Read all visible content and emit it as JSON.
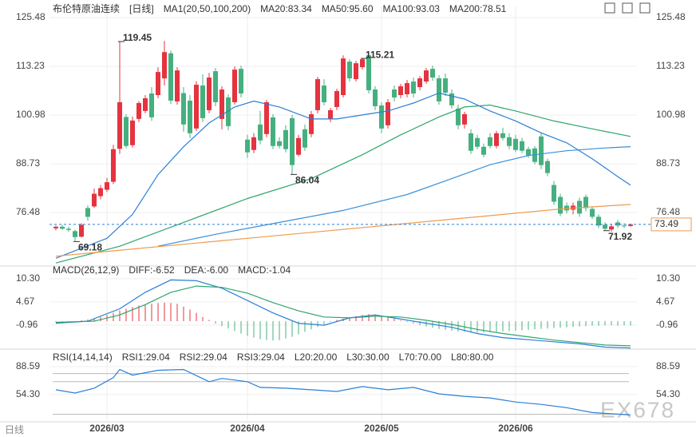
{
  "chart_data": [
    {
      "type": "candlestick",
      "title": "布伦特原油连续",
      "period": "[日线]",
      "indicator": "MA1(20,50,100,200)",
      "up_color": "#e5333f",
      "down_color": "#45b07f",
      "open": [
        72.5,
        72.9,
        72.4,
        71.8,
        70.4,
        77.6,
        78,
        80.6,
        82.2,
        84.2,
        92.5,
        100.5,
        93.4,
        100,
        102,
        106.4,
        106,
        110.2,
        116.5,
        104.4,
        106.5,
        104.6,
        97.6,
        108.4,
        102.2,
        112,
        100,
        105.4,
        104.2,
        112.6,
        94.8,
        92.2,
        98.6,
        96.2,
        100.4,
        94.4,
        97.2,
        100.2,
        91,
        97.4,
        96.2,
        102.2,
        108.4,
        100,
        103,
        106,
        114.4,
        110,
        113,
        116,
        107.4,
        103.4,
        98.4,
        107.4,
        106,
        106.2,
        109.4,
        108,
        109.4,
        112.6,
        110.2,
        110.2,
        106.4,
        102.6,
        98.6,
        96.4,
        95.2,
        93,
        95.4,
        93.2,
        96.4,
        95.4,
        95,
        94.4,
        92.4,
        92.6,
        95.6,
        89.4,
        83.4,
        80.4,
        78.2,
        77.2,
        79.4,
        80.4,
        77.4,
        75.4,
        73.4,
        72.2,
        74,
        73.2,
        73.1
      ],
      "high": [
        73.2,
        73.4,
        72.9,
        72.2,
        73.8,
        78.3,
        82.5,
        83.4,
        85.2,
        93.5,
        119.45,
        101.2,
        100.6,
        104.5,
        106,
        108,
        113,
        119.6,
        117.2,
        113,
        108,
        106,
        109.5,
        111.2,
        111.6,
        112.8,
        108.2,
        106.2,
        113.2,
        113.4,
        96,
        96.4,
        102,
        104.8,
        101.2,
        95.4,
        98.4,
        101,
        96,
        98.6,
        102,
        110.6,
        110,
        102.8,
        107.6,
        116,
        115,
        114.6,
        115.21,
        116.6,
        108.2,
        104.2,
        105,
        108.4,
        108.8,
        109.8,
        110.4,
        110.8,
        112.8,
        113.4,
        111,
        111.4,
        107.4,
        103.6,
        101.8,
        97.4,
        96,
        93.8,
        96.4,
        97,
        97.8,
        96.4,
        96,
        95.2,
        93,
        93.2,
        96.4,
        90,
        84.4,
        81.2,
        79,
        79,
        80.2,
        81,
        78,
        76,
        74,
        73.6,
        74.6,
        73.8,
        73.7
      ],
      "low": [
        72,
        72.2,
        71.6,
        69.18,
        70.2,
        74.4,
        77.6,
        79.8,
        81.6,
        83.6,
        91.2,
        92.6,
        92.8,
        99.2,
        101.4,
        99.5,
        105.2,
        108.4,
        103.8,
        103.6,
        96.8,
        95.2,
        97,
        99.2,
        101.4,
        103.2,
        97.4,
        97.2,
        103.6,
        105.4,
        90.2,
        91.4,
        93.6,
        95.4,
        92.4,
        92.6,
        91.6,
        86.04,
        90.6,
        92,
        95.4,
        101.4,
        103.4,
        99.2,
        102.2,
        105.4,
        109.4,
        109.4,
        112.4,
        106.4,
        102.2,
        96.4,
        97.6,
        104.4,
        105.2,
        105.4,
        105.4,
        107.2,
        108.8,
        109.6,
        103.6,
        105.8,
        102.6,
        97.4,
        97.6,
        91.2,
        92.4,
        90.4,
        92.6,
        92.6,
        94.6,
        92.4,
        91.6,
        91.4,
        90.2,
        88.6,
        87.4,
        85.6,
        78.4,
        75.6,
        76.2,
        76,
        75.4,
        76.8,
        74.8,
        72.6,
        71.92,
        71.6,
        72.6,
        72.6,
        72.9
      ],
      "close": [
        72.9,
        72.4,
        72.1,
        70.3,
        73.4,
        75.4,
        81.2,
        82.6,
        84.1,
        92.4,
        104.2,
        93.2,
        99.6,
        104,
        105.2,
        100.4,
        111.8,
        116.8,
        104.6,
        112.2,
        98.6,
        96.4,
        108.6,
        100.2,
        110.4,
        104.2,
        107.4,
        98.2,
        112.4,
        106.4,
        91.6,
        95.4,
        94.6,
        104.2,
        93.2,
        93.2,
        92.4,
        88.4,
        95.2,
        92.8,
        101.2,
        110,
        104.2,
        102.2,
        107,
        115.2,
        110.2,
        114,
        115,
        107.2,
        103.2,
        97.6,
        104.2,
        105.4,
        108.2,
        109,
        106.4,
        110.2,
        112.2,
        110.4,
        104.4,
        106.6,
        103.4,
        98.4,
        101.2,
        92,
        93,
        91,
        93.2,
        96.4,
        95.2,
        93.2,
        92.2,
        92,
        90.8,
        89.2,
        88.4,
        86.4,
        79.2,
        76.2,
        77,
        78.2,
        76.2,
        77.6,
        75.4,
        73.2,
        72.4,
        73,
        73.2,
        73.1,
        73.49
      ],
      "series": [
        {
          "name": "MA20:83.34",
          "color": "#2b7fd6",
          "x": [
            0,
            8,
            12,
            16,
            20,
            24,
            28,
            31,
            35,
            40,
            44,
            48,
            52,
            56,
            60,
            64,
            68,
            72,
            76,
            80,
            84,
            88,
            90
          ],
          "values": [
            65,
            70,
            76,
            86,
            93,
            99,
            103,
            104.5,
            103,
            100,
            100,
            101,
            102,
            104,
            106.5,
            105,
            102,
            99.5,
            96.5,
            94,
            90,
            85.5,
            83.34
          ]
        },
        {
          "name": "MA50:95.60",
          "color": "#2fa56d",
          "x": [
            0,
            10,
            20,
            30,
            40,
            48,
            54,
            60,
            64,
            68,
            72,
            78,
            84,
            90
          ],
          "values": [
            63.8,
            68,
            74,
            80,
            85,
            91,
            96,
            100.5,
            103,
            103.5,
            102,
            99.5,
            97.5,
            95.6
          ]
        },
        {
          "name": "MA100:93.03",
          "color": "#3a8fd8",
          "x": [
            16,
            25,
            35,
            45,
            55,
            62,
            68,
            74,
            80,
            86,
            90
          ],
          "values": [
            68,
            71,
            74,
            77,
            81,
            85,
            88.5,
            90.8,
            92,
            92.7,
            93.03
          ]
        },
        {
          "name": "MA200:78.51",
          "color": "#ee9a4c",
          "x": [
            0,
            30,
            60,
            80,
            90
          ],
          "values": [
            65.5,
            70,
            74.5,
            77.5,
            78.51
          ]
        }
      ],
      "annotations": [
        {
          "x": 10,
          "value": 119.45,
          "color": "#e5333f"
        },
        {
          "x": 48,
          "value": 115.21,
          "color": "#e5333f"
        },
        {
          "x": 37,
          "value": 86.04,
          "color": "#45b07f"
        },
        {
          "x": 3,
          "value": 69.18,
          "color": "#45b07f"
        },
        {
          "x": 86,
          "value": 71.92,
          "color": "#45b07f"
        }
      ],
      "last": 73.49,
      "xlim": [
        -1,
        91
      ],
      "xticks": [
        {
          "value": 8,
          "label": "2026/03"
        },
        {
          "value": 30,
          "label": "2026/04"
        },
        {
          "value": 51,
          "label": "2026/05"
        },
        {
          "value": 72,
          "label": "2026/06"
        }
      ],
      "ylim": [
        63.63,
        128.29
      ],
      "yticks": [
        76.48,
        88.73,
        100.98,
        113.23,
        125.48
      ],
      "grid": true
    },
    {
      "type": "macd",
      "title": "MACD(26,12,9)",
      "series": [
        {
          "name": "DIFF:-6.52",
          "color": "#2b7fd6",
          "x": [
            0,
            5,
            10,
            14,
            18,
            22,
            26,
            30,
            34,
            38,
            42,
            46,
            50,
            54,
            58,
            62,
            66,
            70,
            74,
            78,
            82,
            86,
            90
          ],
          "values": [
            -0.5,
            0,
            3,
            7,
            10,
            9.8,
            8,
            5,
            2,
            -0.5,
            -1,
            0.8,
            1.5,
            0.5,
            -0.5,
            -1.5,
            -3,
            -4,
            -4.5,
            -5,
            -5.5,
            -6.3,
            -6.52
          ]
        },
        {
          "name": "DEA:-6.00",
          "color": "#2fa56d",
          "x": [
            0,
            6,
            10,
            14,
            18,
            22,
            26,
            30,
            34,
            38,
            42,
            46,
            50,
            54,
            58,
            62,
            66,
            70,
            74,
            78,
            82,
            86,
            90
          ],
          "values": [
            -0.3,
            0,
            1.5,
            4,
            7,
            8.5,
            8.2,
            6.8,
            4.5,
            2.5,
            1,
            0.8,
            1.2,
            1,
            0.2,
            -0.8,
            -2,
            -3,
            -3.8,
            -4.6,
            -5.2,
            -5.8,
            -6
          ]
        }
      ],
      "histogram": {
        "name": "MACD:-1.04",
        "color": "#2b7fd6",
        "values": [
          -0.3,
          -0.3,
          -0.2,
          -0.1,
          0.2,
          0.4,
          0.6,
          1,
          1.5,
          2,
          2.6,
          3,
          3.4,
          3.8,
          4,
          4.2,
          4.4,
          4.5,
          4.4,
          4.2,
          3.5,
          2.8,
          2,
          1,
          0.3,
          -0.6,
          -1.2,
          -1.8,
          -2.4,
          -3,
          -3.6,
          -4,
          -4.4,
          -4.6,
          -4.7,
          -4.6,
          -4.2,
          -3.8,
          -3.2,
          -2.6,
          -2,
          -1.4,
          -0.8,
          -0.2,
          0.3,
          0.6,
          0.9,
          1.2,
          1.5,
          1.7,
          1.6,
          1.3,
          1,
          0.6,
          0.2,
          -0.2,
          -0.6,
          -1,
          -1.3,
          -1.6,
          -1.9,
          -2.1,
          -2.3,
          -2.5,
          -2.6,
          -2.7,
          -2.8,
          -2.8,
          -2.7,
          -2.6,
          -2.5,
          -2.4,
          -2.3,
          -2.2,
          -2.1,
          -2,
          -1.9,
          -1.8,
          -1.7,
          -1.6,
          -1.5,
          -1.4,
          -1.3,
          -1.2,
          -1.1,
          -1.1,
          -1,
          -1,
          -1.1,
          -1,
          -1.04
        ]
      },
      "ylim": [
        -6.4,
        12.4
      ],
      "yticks": [
        {
          "value": 10.3,
          "label": "10.30"
        },
        4.67,
        -0.96
      ]
    },
    {
      "type": "line",
      "title": "RSI(14,14,14)",
      "series": [
        {
          "name": "RSI1:29.04",
          "color": "#2b7fd6",
          "x": [
            0,
            3,
            6,
            9,
            10,
            12,
            16,
            20,
            24,
            26,
            28,
            30,
            32,
            36,
            40,
            44,
            48,
            52,
            56,
            60,
            64,
            68,
            72,
            76,
            80,
            84,
            88,
            90
          ],
          "values": [
            60,
            56,
            62,
            75,
            85,
            78,
            84,
            85,
            70,
            74,
            72,
            70,
            63,
            62,
            60,
            58,
            64,
            60,
            63,
            55,
            52,
            50,
            45,
            42,
            38,
            32,
            30,
            29.04
          ]
        },
        {
          "name": "RSI2:29.04",
          "color": "#2fa56d"
        },
        {
          "name": "RSI3:29.04",
          "color": "#3a8fd8"
        }
      ],
      "levels": [
        {
          "name": "L20:20.00",
          "value": 20
        },
        {
          "name": "L30:30.00",
          "value": 30
        },
        {
          "name": "L70:70.00",
          "value": 70
        },
        {
          "name": "L80:80.00",
          "value": 80
        }
      ],
      "ylim": [
        20.6,
        97.3
      ],
      "yticks": [
        88.59,
        {
          "value": 54.3,
          "label": "54.30"
        }
      ]
    }
  ],
  "footer": {
    "period": "日线",
    "watermark": "EX678"
  }
}
